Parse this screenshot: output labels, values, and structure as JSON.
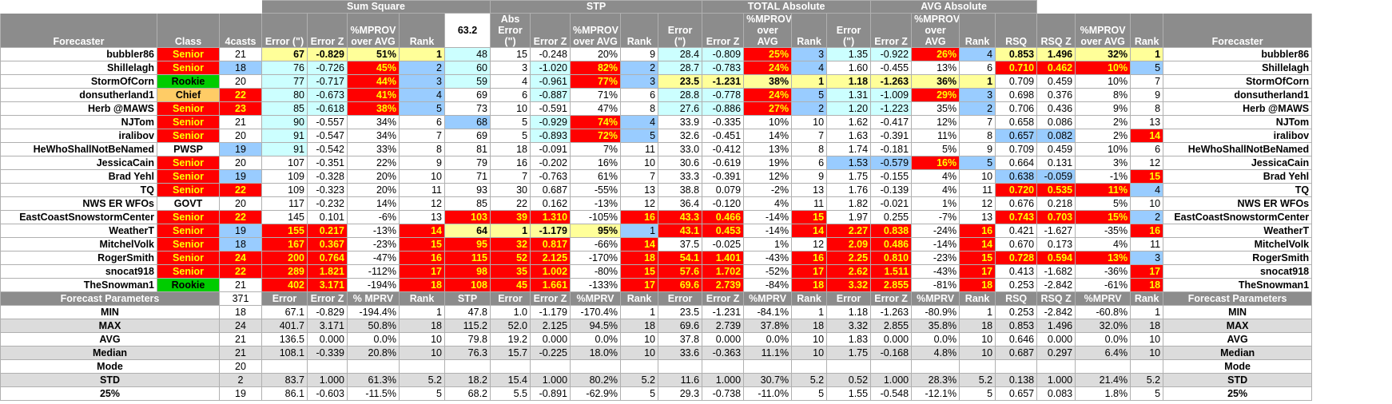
{
  "groups": [
    {
      "label": "Sum Square",
      "span": 5
    },
    {
      "label": "STP",
      "span": 5
    },
    {
      "label": "TOTAL Absolute",
      "span": 4
    },
    {
      "label": "AVG Absolute",
      "span": 4
    }
  ],
  "headers": [
    "Forecaster",
    "Class",
    "4casts",
    "Error (\")",
    "Error Z",
    "%MPROV over AVG",
    "Rank",
    "63.2",
    "Abs Error (\")",
    "Error Z",
    "%MPROV over AVG",
    "Rank",
    "Error (\")",
    "Error Z",
    "%MPROV over AVG",
    "Rank",
    "Error (\")",
    "Error Z",
    "%MPROV over AVG",
    "Rank",
    "RSQ",
    "RSQ Z",
    "%MPROV over AVG",
    "Rank",
    "Forecaster"
  ],
  "colors": {
    "header_gray": "#8c8c8c",
    "worse_red": "#ff0000",
    "worse_text": "#ffff00",
    "best_yellow": "#ffff99",
    "good_blue": "#ccffff",
    "class_green": "#00cc00",
    "class_orange": "#ffcc66",
    "class_red": "#ff0000"
  },
  "rows": [
    {
      "name": "bubbler86",
      "cls": "Senior",
      "n": "21",
      "v": [
        "67",
        "-0.829",
        "51%",
        "1",
        "48",
        "15",
        "-0.248",
        "20%",
        "9",
        "28.4",
        "-0.809",
        "25%",
        "3",
        "1.35",
        "-0.922",
        "26%",
        "4",
        "0.853",
        "1.496",
        "32%",
        "1"
      ],
      "h": {
        "cls": "red",
        "n": "",
        "v": [
          "yel",
          "yel",
          "yel",
          "yel",
          "blu",
          "",
          "",
          "",
          "",
          "blu",
          "blu",
          "red",
          "lbl",
          "blu",
          "blu",
          "red",
          "lbl",
          "yel",
          "yel",
          "yel",
          "yel"
        ]
      }
    },
    {
      "name": "Shillelagh",
      "cls": "Senior",
      "n": "18",
      "v": [
        "76",
        "-0.726",
        "45%",
        "2",
        "60",
        "3",
        "-1.020",
        "82%",
        "2",
        "28.7",
        "-0.783",
        "24%",
        "4",
        "1.60",
        "-0.455",
        "13%",
        "6",
        "0.710",
        "0.462",
        "10%",
        "5"
      ],
      "h": {
        "cls": "red",
        "n": "lbl",
        "v": [
          "blu",
          "blu",
          "red",
          "lbl",
          "blu",
          "",
          "blu",
          "red",
          "lbl",
          "blu",
          "blu",
          "red",
          "lbl",
          "",
          "",
          "",
          "",
          "red",
          "red",
          "red",
          "lbl"
        ]
      }
    },
    {
      "name": "StormOfCorn",
      "cls": "Rookie",
      "n": "20",
      "v": [
        "77",
        "-0.717",
        "44%",
        "3",
        "59",
        "4",
        "-0.961",
        "77%",
        "3",
        "23.5",
        "-1.231",
        "38%",
        "1",
        "1.18",
        "-1.263",
        "36%",
        "1",
        "0.709",
        "0.459",
        "10%",
        "7"
      ],
      "h": {
        "cls": "grn",
        "n": "",
        "v": [
          "blu",
          "blu",
          "red",
          "lbl",
          "blu",
          "",
          "blu",
          "red",
          "lbl",
          "yel",
          "yel",
          "yel",
          "yel",
          "yel",
          "yel",
          "yel",
          "yel",
          "",
          "",
          "",
          ""
        ]
      }
    },
    {
      "name": "donsutherland1",
      "cls": "Chief",
      "n": "22",
      "v": [
        "80",
        "-0.673",
        "41%",
        "4",
        "69",
        "6",
        "-0.887",
        "71%",
        "6",
        "28.8",
        "-0.778",
        "24%",
        "5",
        "1.31",
        "-1.009",
        "29%",
        "3",
        "0.698",
        "0.376",
        "8%",
        "9"
      ],
      "h": {
        "cls": "org",
        "n": "red",
        "v": [
          "blu",
          "blu",
          "red",
          "lbl",
          "",
          "",
          "blu",
          "",
          "",
          "blu",
          "blu",
          "red",
          "lbl",
          "blu",
          "blu",
          "red",
          "lbl",
          "",
          "",
          "",
          ""
        ]
      }
    },
    {
      "name": "Herb @MAWS",
      "cls": "Senior",
      "n": "23",
      "v": [
        "85",
        "-0.618",
        "38%",
        "5",
        "73",
        "10",
        "-0.591",
        "47%",
        "8",
        "27.6",
        "-0.886",
        "27%",
        "2",
        "1.20",
        "-1.223",
        "35%",
        "2",
        "0.706",
        "0.436",
        "9%",
        "8"
      ],
      "h": {
        "cls": "red",
        "n": "red",
        "v": [
          "blu",
          "blu",
          "red",
          "lbl",
          "",
          "",
          "",
          "",
          "",
          "blu",
          "blu",
          "red",
          "lbl",
          "blu",
          "blu",
          "",
          "lbl",
          "",
          "",
          "",
          ""
        ]
      }
    },
    {
      "name": "NJTom",
      "cls": "Senior",
      "n": "21",
      "v": [
        "90",
        "-0.557",
        "34%",
        "6",
        "68",
        "5",
        "-0.929",
        "74%",
        "4",
        "33.9",
        "-0.335",
        "10%",
        "10",
        "1.62",
        "-0.417",
        "12%",
        "7",
        "0.658",
        "0.086",
        "2%",
        "13"
      ],
      "h": {
        "cls": "red",
        "n": "",
        "v": [
          "blu",
          "",
          "",
          "",
          "lbl",
          "",
          "blu",
          "red",
          "lbl",
          "",
          "",
          "",
          "",
          "",
          "",
          "",
          "",
          "",
          "",
          "",
          ""
        ]
      }
    },
    {
      "name": "iralibov",
      "cls": "Senior",
      "n": "20",
      "v": [
        "91",
        "-0.547",
        "34%",
        "7",
        "69",
        "5",
        "-0.893",
        "72%",
        "5",
        "32.6",
        "-0.451",
        "14%",
        "7",
        "1.63",
        "-0.391",
        "11%",
        "8",
        "0.657",
        "0.082",
        "2%",
        "14"
      ],
      "h": {
        "cls": "red",
        "n": "",
        "v": [
          "blu",
          "",
          "",
          "",
          "",
          "",
          "blu",
          "red",
          "lbl",
          "",
          "",
          "",
          "",
          "",
          "",
          "",
          "",
          "lbl",
          "lbl",
          "",
          "red"
        ]
      }
    },
    {
      "name": "HeWhoShallNotBeNamed",
      "cls": "PWSP",
      "n": "19",
      "v": [
        "91",
        "-0.542",
        "33%",
        "8",
        "81",
        "18",
        "-0.091",
        "7%",
        "11",
        "33.0",
        "-0.412",
        "13%",
        "8",
        "1.74",
        "-0.181",
        "5%",
        "9",
        "0.709",
        "0.459",
        "10%",
        "6"
      ],
      "h": {
        "cls": "",
        "n": "lbl",
        "v": [
          "blu",
          "",
          "",
          "",
          "",
          "",
          "",
          "",
          "",
          "",
          "",
          "",
          "",
          "",
          "",
          "",
          "",
          "",
          "",
          "",
          ""
        ]
      }
    },
    {
      "name": "JessicaCain",
      "cls": "Senior",
      "n": "20",
      "v": [
        "107",
        "-0.351",
        "22%",
        "9",
        "79",
        "16",
        "-0.202",
        "16%",
        "10",
        "30.6",
        "-0.619",
        "19%",
        "6",
        "1.53",
        "-0.579",
        "16%",
        "5",
        "0.664",
        "0.131",
        "3%",
        "12"
      ],
      "h": {
        "cls": "red",
        "n": "",
        "v": [
          "",
          "",
          "",
          "",
          "",
          "",
          "",
          "",
          "",
          "",
          "",
          "",
          "",
          "lbl",
          "lbl",
          "red",
          "lbl",
          "",
          "",
          "",
          ""
        ]
      }
    },
    {
      "name": "Brad Yehl",
      "cls": "Senior",
      "n": "19",
      "v": [
        "109",
        "-0.328",
        "20%",
        "10",
        "71",
        "7",
        "-0.763",
        "61%",
        "7",
        "33.3",
        "-0.391",
        "12%",
        "9",
        "1.75",
        "-0.155",
        "4%",
        "10",
        "0.638",
        "-0.059",
        "-1%",
        "15"
      ],
      "h": {
        "cls": "red",
        "n": "lbl",
        "v": [
          "",
          "",
          "",
          "",
          "",
          "",
          "",
          "",
          "",
          "",
          "",
          "",
          "",
          "",
          "",
          "",
          "",
          "lbl",
          "lbl",
          "",
          "red"
        ]
      }
    },
    {
      "name": "TQ",
      "cls": "Senior",
      "n": "22",
      "v": [
        "109",
        "-0.323",
        "20%",
        "11",
        "93",
        "30",
        "0.687",
        "-55%",
        "13",
        "38.8",
        "0.079",
        "-2%",
        "13",
        "1.76",
        "-0.139",
        "4%",
        "11",
        "0.720",
        "0.535",
        "11%",
        "4"
      ],
      "h": {
        "cls": "red",
        "n": "red",
        "v": [
          "",
          "",
          "",
          "",
          "",
          "",
          "",
          "",
          "",
          "",
          "",
          "",
          "",
          "",
          "",
          "",
          "",
          "red",
          "red",
          "red",
          "lbl"
        ]
      }
    },
    {
      "name": "NWS ER WFOs",
      "cls": "GOVT",
      "n": "20",
      "v": [
        "117",
        "-0.232",
        "14%",
        "12",
        "85",
        "22",
        "0.162",
        "-13%",
        "12",
        "36.4",
        "-0.120",
        "4%",
        "11",
        "1.82",
        "-0.021",
        "1%",
        "12",
        "0.676",
        "0.218",
        "5%",
        "10"
      ],
      "h": {
        "cls": "",
        "n": "",
        "v": [
          "",
          "",
          "",
          "",
          "",
          "",
          "",
          "",
          "",
          "",
          "",
          "",
          "",
          "",
          "",
          "",
          "",
          "",
          "",
          "",
          ""
        ]
      }
    },
    {
      "name": "EastCoastSnowstormCenter",
      "cls": "Senior",
      "n": "22",
      "v": [
        "145",
        "0.101",
        "-6%",
        "13",
        "103",
        "39",
        "1.310",
        "-105%",
        "16",
        "43.3",
        "0.466",
        "-14%",
        "15",
        "1.97",
        "0.255",
        "-7%",
        "13",
        "0.743",
        "0.703",
        "15%",
        "2"
      ],
      "h": {
        "cls": "red",
        "n": "red",
        "v": [
          "",
          "",
          "",
          "",
          "red",
          "red",
          "red",
          "",
          "red",
          "red",
          "red",
          "",
          "red",
          "",
          "",
          "",
          "",
          "red",
          "red",
          "red",
          "lbl"
        ]
      }
    },
    {
      "name": "WeatherT",
      "cls": "Senior",
      "n": "19",
      "v": [
        "155",
        "0.217",
        "-13%",
        "14",
        "64",
        "1",
        "-1.179",
        "95%",
        "1",
        "43.1",
        "0.453",
        "-14%",
        "14",
        "2.27",
        "0.838",
        "-24%",
        "16",
        "0.421",
        "-1.627",
        "-35%",
        "16"
      ],
      "h": {
        "cls": "red",
        "n": "lbl",
        "v": [
          "red",
          "red",
          "",
          "red",
          "yel",
          "yel",
          "yel",
          "yel",
          "lbl",
          "red",
          "red",
          "",
          "red",
          "red",
          "red",
          "",
          "red",
          "",
          "",
          "",
          "red"
        ]
      }
    },
    {
      "name": "MitchelVolk",
      "cls": "Senior",
      "n": "18",
      "v": [
        "167",
        "0.367",
        "-23%",
        "15",
        "95",
        "32",
        "0.817",
        "-66%",
        "14",
        "37.5",
        "-0.025",
        "1%",
        "12",
        "2.09",
        "0.486",
        "-14%",
        "14",
        "0.670",
        "0.173",
        "4%",
        "11"
      ],
      "h": {
        "cls": "red",
        "n": "lbl",
        "v": [
          "red",
          "red",
          "",
          "red",
          "red",
          "red",
          "red",
          "",
          "red",
          "",
          "",
          "",
          "",
          "red",
          "red",
          "",
          "red",
          "",
          "",
          "",
          ""
        ]
      }
    },
    {
      "name": "RogerSmith",
      "cls": "Senior",
      "n": "24",
      "v": [
        "200",
        "0.764",
        "-47%",
        "16",
        "115",
        "52",
        "2.125",
        "-170%",
        "18",
        "54.1",
        "1.401",
        "-43%",
        "16",
        "2.25",
        "0.810",
        "-23%",
        "15",
        "0.728",
        "0.594",
        "13%",
        "3"
      ],
      "h": {
        "cls": "red",
        "n": "red",
        "v": [
          "red",
          "red",
          "",
          "red",
          "red",
          "red",
          "red",
          "",
          "red",
          "red",
          "red",
          "",
          "red",
          "red",
          "red",
          "",
          "red",
          "red",
          "red",
          "red",
          "lbl"
        ]
      }
    },
    {
      "name": "snocat918",
      "cls": "Senior",
      "n": "22",
      "v": [
        "289",
        "1.821",
        "-112%",
        "17",
        "98",
        "35",
        "1.002",
        "-80%",
        "15",
        "57.6",
        "1.702",
        "-52%",
        "17",
        "2.62",
        "1.511",
        "-43%",
        "17",
        "0.413",
        "-1.682",
        "-36%",
        "17"
      ],
      "h": {
        "cls": "red",
        "n": "red",
        "v": [
          "red",
          "red",
          "",
          "red",
          "red",
          "red",
          "red",
          "",
          "red",
          "red",
          "red",
          "",
          "red",
          "red",
          "red",
          "",
          "red",
          "",
          "",
          "",
          "red"
        ]
      }
    },
    {
      "name": "TheSnowman1",
      "cls": "Rookie",
      "n": "21",
      "v": [
        "402",
        "3.171",
        "-194%",
        "18",
        "108",
        "45",
        "1.661",
        "-133%",
        "17",
        "69.6",
        "2.739",
        "-84%",
        "18",
        "3.32",
        "2.855",
        "-81%",
        "18",
        "0.253",
        "-2.842",
        "-61%",
        "18"
      ],
      "h": {
        "cls": "grn",
        "n": "",
        "v": [
          "red",
          "red",
          "",
          "red",
          "red",
          "red",
          "red",
          "",
          "red",
          "red",
          "red",
          "",
          "red",
          "red",
          "red",
          "",
          "red",
          "",
          "",
          "",
          "red"
        ]
      }
    }
  ],
  "params_row": {
    "label": "Forecast Parameters",
    "n": "371",
    "cols": [
      "Error",
      "Error Z",
      "% MPRV",
      "Rank",
      "STP",
      "Error",
      "Error Z",
      "%MPRV",
      "Rank",
      "Error",
      "Error Z",
      "%MPRV",
      "Rank",
      "Error",
      "Error Z",
      "%MPRV",
      "Rank",
      "RSQ",
      "RSQ Z",
      "%MPRV",
      "Rank"
    ],
    "right": "Forecast Parameters"
  },
  "stats": [
    {
      "label": "MIN",
      "n": "18",
      "v": [
        "67.1",
        "-0.829",
        "-194.4%",
        "1",
        "47.8",
        "1.0",
        "-1.179",
        "-170.4%",
        "1",
        "23.5",
        "-1.231",
        "-84.1%",
        "1",
        "1.18",
        "-1.263",
        "-80.9%",
        "1",
        "0.253",
        "-2.842",
        "-60.8%",
        "1"
      ]
    },
    {
      "label": "MAX",
      "n": "24",
      "v": [
        "401.7",
        "3.171",
        "50.8%",
        "18",
        "115.2",
        "52.0",
        "2.125",
        "94.5%",
        "18",
        "69.6",
        "2.739",
        "37.8%",
        "18",
        "3.32",
        "2.855",
        "35.8%",
        "18",
        "0.853",
        "1.496",
        "32.0%",
        "18"
      ]
    },
    {
      "label": "AVG",
      "n": "21",
      "v": [
        "136.5",
        "0.000",
        "0.0%",
        "10",
        "79.8",
        "19.2",
        "0.000",
        "0.0%",
        "10",
        "37.8",
        "0.000",
        "0.0%",
        "10",
        "1.83",
        "0.000",
        "0.0%",
        "10",
        "0.646",
        "0.000",
        "0.0%",
        "10"
      ]
    },
    {
      "label": "Median",
      "n": "21",
      "v": [
        "108.1",
        "-0.339",
        "20.8%",
        "10",
        "76.3",
        "15.7",
        "-0.225",
        "18.0%",
        "10",
        "33.6",
        "-0.363",
        "11.1%",
        "10",
        "1.75",
        "-0.168",
        "4.8%",
        "10",
        "0.687",
        "0.297",
        "6.4%",
        "10"
      ]
    },
    {
      "label": "Mode",
      "n": "20",
      "v": [
        "",
        "",
        "",
        "",
        "",
        "",
        "",
        "",
        "",
        "",
        "",
        "",
        "",
        "",
        "",
        "",
        "",
        "",
        "",
        "",
        ""
      ]
    },
    {
      "label": "STD",
      "n": "2",
      "v": [
        "83.7",
        "1.000",
        "61.3%",
        "5.2",
        "18.2",
        "15.4",
        "1.000",
        "80.2%",
        "5.2",
        "11.6",
        "1.000",
        "30.7%",
        "5.2",
        "0.52",
        "1.000",
        "28.3%",
        "5.2",
        "0.138",
        "1.000",
        "21.4%",
        "5.2"
      ]
    },
    {
      "label": "25%",
      "n": "19",
      "v": [
        "86.1",
        "-0.603",
        "-11.5%",
        "5",
        "68.2",
        "5.5",
        "-0.891",
        "-62.9%",
        "5",
        "29.3",
        "-0.738",
        "-11.0%",
        "5",
        "1.55",
        "-0.548",
        "-12.1%",
        "5",
        "0.657",
        "0.083",
        "1.8%",
        "5"
      ]
    }
  ]
}
